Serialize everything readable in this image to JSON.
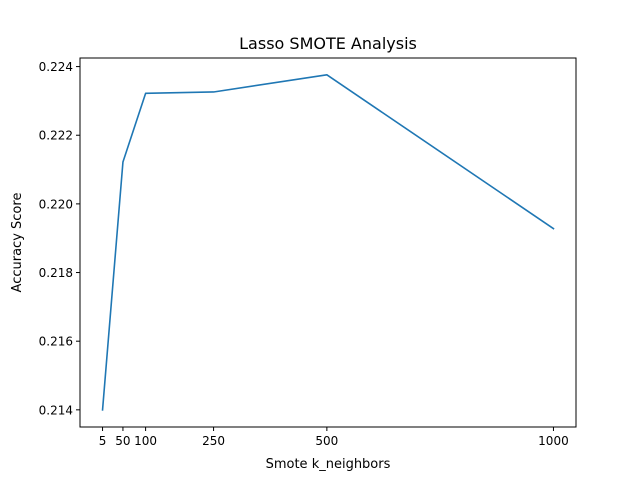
{
  "chart_data": {
    "type": "line",
    "title": "Lasso SMOTE Analysis",
    "xlabel": "Smote k_neighbors",
    "ylabel": "Accuracy Score",
    "x": [
      5,
      50,
      100,
      250,
      500,
      1000
    ],
    "series": [
      {
        "values": [
          0.214,
          0.22122,
          0.22322,
          0.22326,
          0.22376,
          0.21928
        ],
        "color": "#1f77b4"
      }
    ],
    "xticks": [
      5,
      50,
      100,
      250,
      500,
      1000
    ],
    "xtick_labels": [
      "5",
      "50",
      "100",
      "250",
      "500",
      "1000"
    ],
    "yticks": [
      0.214,
      0.216,
      0.218,
      0.22,
      0.222,
      0.224
    ],
    "ytick_labels": [
      "0.214",
      "0.216",
      "0.218",
      "0.220",
      "0.222",
      "0.224"
    ],
    "xlim": [
      -44.75,
      1049.75
    ],
    "ylim": [
      0.2135,
      0.22425
    ],
    "grid": false,
    "legend": false
  }
}
